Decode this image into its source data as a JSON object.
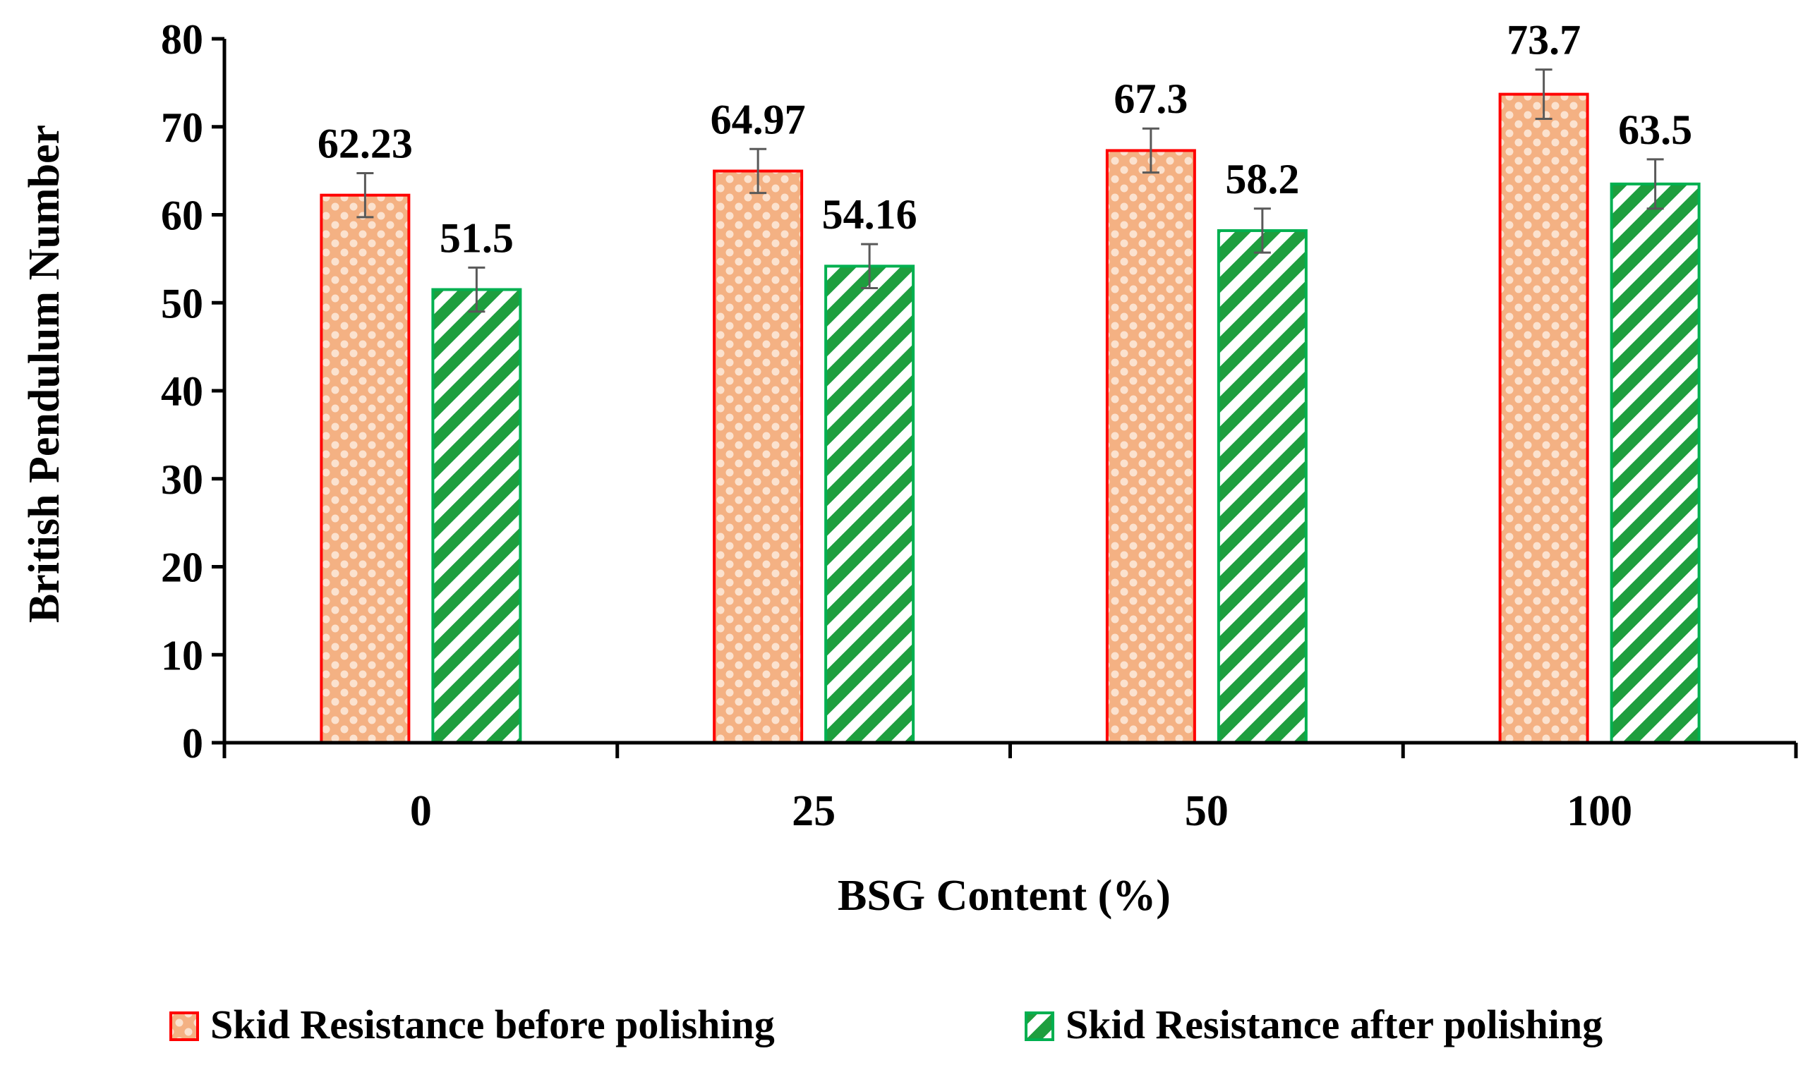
{
  "chart_data": {
    "type": "bar",
    "title": "",
    "xlabel": "BSG Content (%)",
    "ylabel": "British Pendulum Number",
    "categories": [
      "0",
      "25",
      "50",
      "100"
    ],
    "ylim": [
      0,
      80
    ],
    "yticks": [
      0,
      10,
      20,
      30,
      40,
      50,
      60,
      70,
      80
    ],
    "grid": false,
    "legend_position": "bottom",
    "series": [
      {
        "name": "Skid Resistance before polishing",
        "values": [
          62.23,
          64.97,
          67.3,
          73.7
        ],
        "labels": [
          "62.23",
          "64.97",
          "67.3",
          "73.7"
        ],
        "errors": [
          2.5,
          2.5,
          2.5,
          2.8
        ],
        "pattern": "dots",
        "fill_color": "#f4b183",
        "dot_color": "#fbe2cf",
        "border_color": "#ff0000"
      },
      {
        "name": "Skid Resistance after polishing",
        "values": [
          51.5,
          54.16,
          58.2,
          63.5
        ],
        "labels": [
          "51.5",
          "54.16",
          "58.2",
          "63.5"
        ],
        "errors": [
          2.5,
          2.5,
          2.5,
          2.8
        ],
        "pattern": "diagonal-stripes",
        "fill_color": "#1e9e3e",
        "border_color": "#00b050"
      }
    ]
  }
}
